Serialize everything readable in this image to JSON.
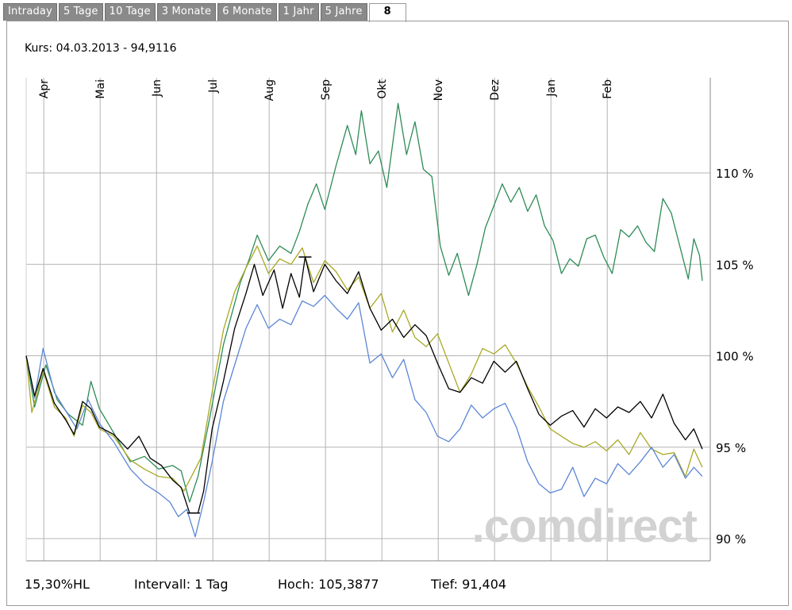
{
  "tabs": [
    "Intraday",
    "5 Tage",
    "10 Tage",
    "3 Monate",
    "6 Monate",
    "1 Jahr",
    "5 Jahre",
    "8"
  ],
  "active_tab": 7,
  "kurs_text": "Kurs: 04.03.2013 - 94,9116",
  "footer": {
    "hl": "15,30%HL",
    "intervall": "Intervall: 1 Tag",
    "hoch": "Hoch: 105,3877",
    "tief": "Tief:  91,404"
  },
  "watermark": ".comdirect",
  "colors": {
    "black_series": "#000000",
    "green_series": "#2e8b57",
    "olive_series": "#a8a826",
    "blue_series": "#5b86d6",
    "grid": "#b4b4b4",
    "tab_bg": "#8a8a8a"
  },
  "chart_data": {
    "type": "line",
    "title": "Kurs: 04.03.2013 - 94,9116",
    "x_range": [
      0,
      11.5
    ],
    "x_note": "months since start of April 2012",
    "month_ticks": [
      {
        "label": "Apr",
        "x": 0.2
      },
      {
        "label": "Mai",
        "x": 1.2
      },
      {
        "label": "Jun",
        "x": 2.2
      },
      {
        "label": "Jul",
        "x": 3.2
      },
      {
        "label": "Aug",
        "x": 4.2
      },
      {
        "label": "Sep",
        "x": 5.2
      },
      {
        "label": "Okt",
        "x": 6.2
      },
      {
        "label": "Nov",
        "x": 7.2
      },
      {
        "label": "Dez",
        "x": 8.2
      },
      {
        "label": "Jan",
        "x": 9.2
      },
      {
        "label": "Feb",
        "x": 10.2
      }
    ],
    "ylim": [
      89,
      115
    ],
    "y_ticks": [
      {
        "value": 90,
        "label": "90 %"
      },
      {
        "value": 95,
        "label": "95 %"
      },
      {
        "value": 100,
        "label": "100 %"
      },
      {
        "value": 105,
        "label": "105 %"
      },
      {
        "value": 110,
        "label": "110 %"
      }
    ],
    "series": [
      {
        "name": "green",
        "color": "#2e8b57",
        "width": 1.3,
        "points": [
          [
            0,
            100
          ],
          [
            0.15,
            97.2
          ],
          [
            0.35,
            99.5
          ],
          [
            0.55,
            97.6
          ],
          [
            0.75,
            96.8
          ],
          [
            1.0,
            96.2
          ],
          [
            1.15,
            98.6
          ],
          [
            1.3,
            97.1
          ],
          [
            1.55,
            95.8
          ],
          [
            1.85,
            94.2
          ],
          [
            2.1,
            94.5
          ],
          [
            2.35,
            93.8
          ],
          [
            2.6,
            94.0
          ],
          [
            2.75,
            93.7
          ],
          [
            2.9,
            92.0
          ],
          [
            3.05,
            93.4
          ],
          [
            3.25,
            96.5
          ],
          [
            3.5,
            100.6
          ],
          [
            3.8,
            104.0
          ],
          [
            3.95,
            105.2
          ],
          [
            4.1,
            106.6
          ],
          [
            4.3,
            105.2
          ],
          [
            4.5,
            106.0
          ],
          [
            4.7,
            105.6
          ],
          [
            4.85,
            106.8
          ],
          [
            5.0,
            108.3
          ],
          [
            5.15,
            109.4
          ],
          [
            5.3,
            108.0
          ],
          [
            5.5,
            110.4
          ],
          [
            5.7,
            112.6
          ],
          [
            5.85,
            111.0
          ],
          [
            5.95,
            113.4
          ],
          [
            6.1,
            110.5
          ],
          [
            6.25,
            111.2
          ],
          [
            6.4,
            109.2
          ],
          [
            6.6,
            113.8
          ],
          [
            6.75,
            111.0
          ],
          [
            6.9,
            112.8
          ],
          [
            7.05,
            110.2
          ],
          [
            7.2,
            109.8
          ],
          [
            7.35,
            106.0
          ],
          [
            7.5,
            104.4
          ],
          [
            7.65,
            105.6
          ],
          [
            7.85,
            103.3
          ],
          [
            8.0,
            105.0
          ],
          [
            8.15,
            107.0
          ],
          [
            8.3,
            108.2
          ],
          [
            8.45,
            109.4
          ],
          [
            8.6,
            108.4
          ],
          [
            8.75,
            109.2
          ],
          [
            8.9,
            107.9
          ],
          [
            9.05,
            108.8
          ],
          [
            9.2,
            107.1
          ],
          [
            9.35,
            106.3
          ],
          [
            9.5,
            104.5
          ],
          [
            9.65,
            105.3
          ],
          [
            9.8,
            104.9
          ],
          [
            9.95,
            106.4
          ],
          [
            10.1,
            106.6
          ],
          [
            10.25,
            105.4
          ],
          [
            10.4,
            104.5
          ],
          [
            10.55,
            106.9
          ],
          [
            10.7,
            106.5
          ],
          [
            10.85,
            107.1
          ],
          [
            11.0,
            106.2
          ],
          [
            11.15,
            105.7
          ],
          [
            11.3,
            108.6
          ],
          [
            11.45,
            107.8
          ],
          [
            11.6,
            106.0
          ],
          [
            11.75,
            104.2
          ],
          [
            11.85,
            106.4
          ],
          [
            11.95,
            105.5
          ],
          [
            12.0,
            104.1
          ]
        ]
      },
      {
        "name": "olive",
        "color": "#a8a826",
        "width": 1.3,
        "points": [
          [
            0,
            100
          ],
          [
            0.1,
            96.9
          ],
          [
            0.3,
            99.2
          ],
          [
            0.5,
            97.2
          ],
          [
            0.7,
            96.6
          ],
          [
            0.85,
            95.6
          ],
          [
            1.0,
            97.3
          ],
          [
            1.15,
            96.9
          ],
          [
            1.3,
            96.0
          ],
          [
            1.55,
            95.6
          ],
          [
            1.85,
            94.3
          ],
          [
            2.1,
            93.8
          ],
          [
            2.35,
            93.4
          ],
          [
            2.6,
            93.3
          ],
          [
            2.8,
            92.6
          ],
          [
            2.95,
            93.5
          ],
          [
            3.1,
            94.4
          ],
          [
            3.3,
            98.0
          ],
          [
            3.5,
            101.4
          ],
          [
            3.7,
            103.5
          ],
          [
            3.9,
            104.8
          ],
          [
            4.1,
            106.0
          ],
          [
            4.3,
            104.5
          ],
          [
            4.5,
            105.3
          ],
          [
            4.7,
            105.0
          ],
          [
            4.9,
            105.9
          ],
          [
            5.1,
            104.0
          ],
          [
            5.3,
            105.2
          ],
          [
            5.5,
            104.6
          ],
          [
            5.7,
            103.6
          ],
          [
            5.9,
            104.3
          ],
          [
            6.1,
            102.6
          ],
          [
            6.3,
            103.4
          ],
          [
            6.5,
            101.3
          ],
          [
            6.7,
            102.5
          ],
          [
            6.9,
            101.0
          ],
          [
            7.1,
            100.5
          ],
          [
            7.3,
            101.2
          ],
          [
            7.5,
            99.6
          ],
          [
            7.7,
            98.0
          ],
          [
            7.9,
            99.0
          ],
          [
            8.1,
            100.4
          ],
          [
            8.3,
            100.1
          ],
          [
            8.5,
            100.6
          ],
          [
            8.7,
            99.6
          ],
          [
            8.9,
            98.3
          ],
          [
            9.1,
            97.2
          ],
          [
            9.3,
            96.0
          ],
          [
            9.5,
            95.6
          ],
          [
            9.7,
            95.2
          ],
          [
            9.9,
            95.0
          ],
          [
            10.1,
            95.3
          ],
          [
            10.3,
            94.8
          ],
          [
            10.5,
            95.4
          ],
          [
            10.7,
            94.6
          ],
          [
            10.9,
            95.8
          ],
          [
            11.1,
            94.9
          ],
          [
            11.3,
            94.6
          ],
          [
            11.5,
            94.7
          ],
          [
            11.7,
            93.4
          ],
          [
            11.85,
            94.9
          ],
          [
            12.0,
            93.9
          ]
        ]
      },
      {
        "name": "blue",
        "color": "#5b86d6",
        "width": 1.3,
        "points": [
          [
            0,
            100
          ],
          [
            0.15,
            97.7
          ],
          [
            0.3,
            100.4
          ],
          [
            0.5,
            98.0
          ],
          [
            0.7,
            97.0
          ],
          [
            0.9,
            96.0
          ],
          [
            1.1,
            97.6
          ],
          [
            1.3,
            96.3
          ],
          [
            1.55,
            95.3
          ],
          [
            1.85,
            93.8
          ],
          [
            2.1,
            93.0
          ],
          [
            2.35,
            92.5
          ],
          [
            2.55,
            92.0
          ],
          [
            2.7,
            91.2
          ],
          [
            2.85,
            91.6
          ],
          [
            3.0,
            90.1
          ],
          [
            3.15,
            92.0
          ],
          [
            3.3,
            94.2
          ],
          [
            3.5,
            97.5
          ],
          [
            3.7,
            99.5
          ],
          [
            3.9,
            101.5
          ],
          [
            4.1,
            102.8
          ],
          [
            4.3,
            101.5
          ],
          [
            4.5,
            102.0
          ],
          [
            4.7,
            101.7
          ],
          [
            4.9,
            103.0
          ],
          [
            5.1,
            102.7
          ],
          [
            5.3,
            103.3
          ],
          [
            5.5,
            102.6
          ],
          [
            5.7,
            102.0
          ],
          [
            5.9,
            102.9
          ],
          [
            6.1,
            99.6
          ],
          [
            6.3,
            100.1
          ],
          [
            6.5,
            98.8
          ],
          [
            6.7,
            99.8
          ],
          [
            6.9,
            97.6
          ],
          [
            7.1,
            96.9
          ],
          [
            7.3,
            95.6
          ],
          [
            7.5,
            95.3
          ],
          [
            7.7,
            96.0
          ],
          [
            7.9,
            97.3
          ],
          [
            8.1,
            96.6
          ],
          [
            8.3,
            97.1
          ],
          [
            8.5,
            97.4
          ],
          [
            8.7,
            96.1
          ],
          [
            8.9,
            94.2
          ],
          [
            9.1,
            93.0
          ],
          [
            9.3,
            92.5
          ],
          [
            9.5,
            92.7
          ],
          [
            9.7,
            93.9
          ],
          [
            9.9,
            92.3
          ],
          [
            10.1,
            93.3
          ],
          [
            10.3,
            93.0
          ],
          [
            10.5,
            94.1
          ],
          [
            10.7,
            93.5
          ],
          [
            10.9,
            94.2
          ],
          [
            11.1,
            95.0
          ],
          [
            11.3,
            93.9
          ],
          [
            11.5,
            94.6
          ],
          [
            11.7,
            93.3
          ],
          [
            11.85,
            93.9
          ],
          [
            12.0,
            93.4
          ]
        ]
      },
      {
        "name": "black",
        "color": "#000000",
        "width": 1.3,
        "points": [
          [
            0,
            100
          ],
          [
            0.15,
            97.8
          ],
          [
            0.3,
            99.3
          ],
          [
            0.5,
            97.4
          ],
          [
            0.7,
            96.5
          ],
          [
            0.85,
            95.7
          ],
          [
            1.0,
            97.5
          ],
          [
            1.15,
            97.1
          ],
          [
            1.3,
            96.1
          ],
          [
            1.55,
            95.7
          ],
          [
            1.8,
            94.9
          ],
          [
            2.0,
            95.6
          ],
          [
            2.2,
            94.4
          ],
          [
            2.4,
            94.0
          ],
          [
            2.6,
            93.2
          ],
          [
            2.75,
            92.8
          ],
          [
            2.9,
            91.4
          ],
          [
            3.05,
            91.4
          ],
          [
            3.15,
            92.6
          ],
          [
            3.3,
            96.0
          ],
          [
            3.5,
            98.6
          ],
          [
            3.7,
            101.5
          ],
          [
            3.9,
            103.4
          ],
          [
            4.05,
            105.0
          ],
          [
            4.2,
            103.3
          ],
          [
            4.4,
            104.7
          ],
          [
            4.55,
            102.6
          ],
          [
            4.7,
            104.5
          ],
          [
            4.85,
            103.2
          ],
          [
            4.95,
            105.4
          ],
          [
            5.1,
            103.5
          ],
          [
            5.3,
            105.0
          ],
          [
            5.5,
            104.1
          ],
          [
            5.7,
            103.4
          ],
          [
            5.9,
            104.6
          ],
          [
            6.1,
            102.6
          ],
          [
            6.3,
            101.4
          ],
          [
            6.5,
            102.0
          ],
          [
            6.7,
            101.0
          ],
          [
            6.9,
            101.7
          ],
          [
            7.1,
            101.1
          ],
          [
            7.3,
            99.6
          ],
          [
            7.5,
            98.2
          ],
          [
            7.7,
            98.0
          ],
          [
            7.9,
            98.8
          ],
          [
            8.1,
            98.5
          ],
          [
            8.3,
            99.7
          ],
          [
            8.5,
            99.1
          ],
          [
            8.7,
            99.7
          ],
          [
            8.9,
            98.2
          ],
          [
            9.1,
            96.8
          ],
          [
            9.3,
            96.2
          ],
          [
            9.5,
            96.7
          ],
          [
            9.7,
            97.0
          ],
          [
            9.9,
            96.1
          ],
          [
            10.1,
            97.1
          ],
          [
            10.3,
            96.6
          ],
          [
            10.5,
            97.2
          ],
          [
            10.7,
            96.9
          ],
          [
            10.9,
            97.5
          ],
          [
            11.1,
            96.6
          ],
          [
            11.3,
            97.9
          ],
          [
            11.5,
            96.3
          ],
          [
            11.7,
            95.4
          ],
          [
            11.85,
            96.0
          ],
          [
            12.0,
            94.9
          ]
        ]
      }
    ],
    "markers": [
      {
        "label": "Hoch",
        "x": 4.95,
        "y": 105.4
      },
      {
        "label": "Tief",
        "x": 2.97,
        "y": 91.4
      }
    ],
    "stats": {
      "hl_percent": "15,30%",
      "intervall": "1 Tag",
      "hoch": 105.3877,
      "tief": 91.404
    }
  }
}
